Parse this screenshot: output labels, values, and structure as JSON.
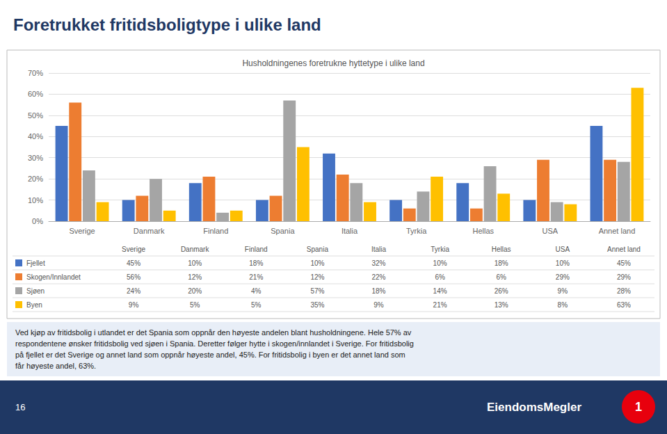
{
  "chart_data": {
    "type": "bar",
    "title": "Foretrukket fritidsboligtype i ulike land",
    "subtitle": "Husholdningenes foretrukne hyttetype i ulike land",
    "categories": [
      "Sverige",
      "Danmark",
      "Finland",
      "Spania",
      "Italia",
      "Tyrkia",
      "Hellas",
      "USA",
      "Annet land"
    ],
    "series": [
      {
        "name": "Fjellet",
        "color": "#4472C4",
        "values": [
          45,
          10,
          18,
          10,
          32,
          10,
          18,
          10,
          45
        ],
        "value_labels": [
          "45%",
          "10%",
          "18%",
          "10%",
          "32%",
          "10%",
          "18%",
          "10%",
          "45%"
        ]
      },
      {
        "name": "Skogen/Innlandet",
        "color": "#ED7D31",
        "values": [
          56,
          12,
          21,
          12,
          22,
          6,
          6,
          29,
          29
        ],
        "value_labels": [
          "56%",
          "12%",
          "21%",
          "12%",
          "22%",
          "6%",
          "6%",
          "29%",
          "29%"
        ]
      },
      {
        "name": "Sjøen",
        "color": "#A5A5A5",
        "values": [
          24,
          20,
          4,
          57,
          18,
          14,
          26,
          9,
          28
        ],
        "value_labels": [
          "24%",
          "20%",
          "4%",
          "57%",
          "18%",
          "14%",
          "26%",
          "9%",
          "28%"
        ]
      },
      {
        "name": "Byen",
        "color": "#FFC000",
        "values": [
          9,
          5,
          5,
          35,
          9,
          21,
          13,
          8,
          63
        ],
        "value_labels": [
          "9%",
          "5%",
          "5%",
          "35%",
          "9%",
          "21%",
          "13%",
          "8%",
          "63%"
        ]
      }
    ],
    "ylim": [
      0,
      70
    ],
    "yticks": [
      {
        "value": 0,
        "label": "0%"
      },
      {
        "value": 10,
        "label": "10%"
      },
      {
        "value": 20,
        "label": "20%"
      },
      {
        "value": 30,
        "label": "30%"
      },
      {
        "value": 40,
        "label": "40%"
      },
      {
        "value": 50,
        "label": "50%"
      },
      {
        "value": 60,
        "label": "60%"
      },
      {
        "value": 70,
        "label": "70%"
      }
    ],
    "grid": true,
    "annotations": [
      "Ved kjøp av fritidsbolig i utlandet er det Spania som oppnår den høyeste andelen blant husholdningene. Hele 57% av\nrespondentene ønsker fritidsbolig ved sjøen i Spania. Deretter følger hytte i skogen/innlandet i Sverige. For fritidsbolig\npå fjellet er det Sverige og annet land som oppnår høyeste andel, 45%. For fritidsbolig i byen er det annet land som\nfår høyeste andel, 63%.",
      "16",
      "EiendomsMegler",
      "1"
    ]
  }
}
